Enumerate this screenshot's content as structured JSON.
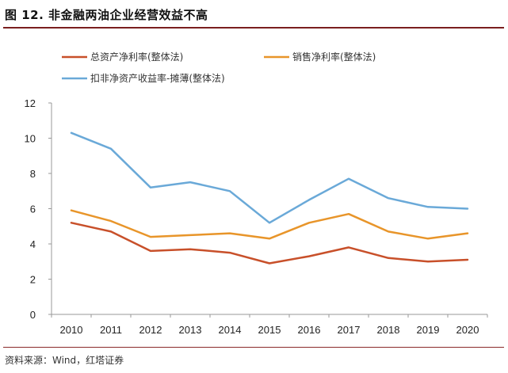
{
  "figure": {
    "title": "图 12. 非金融两油企业经营效益不高",
    "source": "资料来源：Wind，红塔证券"
  },
  "chart_data": {
    "type": "line",
    "title": "",
    "xlabel": "",
    "ylabel": "",
    "ylim": [
      0,
      12
    ],
    "yticks": [
      0,
      2,
      4,
      6,
      8,
      10,
      12
    ],
    "categories": [
      "2010",
      "2011",
      "2012",
      "2013",
      "2014",
      "2015",
      "2016",
      "2017",
      "2018",
      "2019",
      "2020"
    ],
    "grid": false,
    "legend_position": "top",
    "series": [
      {
        "name": "总资产净利率(整体法)",
        "color": "#c8502a",
        "values": [
          5.2,
          4.7,
          3.6,
          3.7,
          3.5,
          2.9,
          3.3,
          3.8,
          3.2,
          3.0,
          3.1
        ]
      },
      {
        "name": "销售净利率(整体法)",
        "color": "#e8952a",
        "values": [
          5.9,
          5.3,
          4.4,
          4.5,
          4.6,
          4.3,
          5.2,
          5.7,
          4.7,
          4.3,
          4.6
        ]
      },
      {
        "name": "扣非净资产收益率-摊薄(整体法)",
        "color": "#6aa9d8",
        "values": [
          10.3,
          9.4,
          7.2,
          7.5,
          7.0,
          5.2,
          6.5,
          7.7,
          6.6,
          6.1,
          6.0
        ]
      }
    ]
  }
}
